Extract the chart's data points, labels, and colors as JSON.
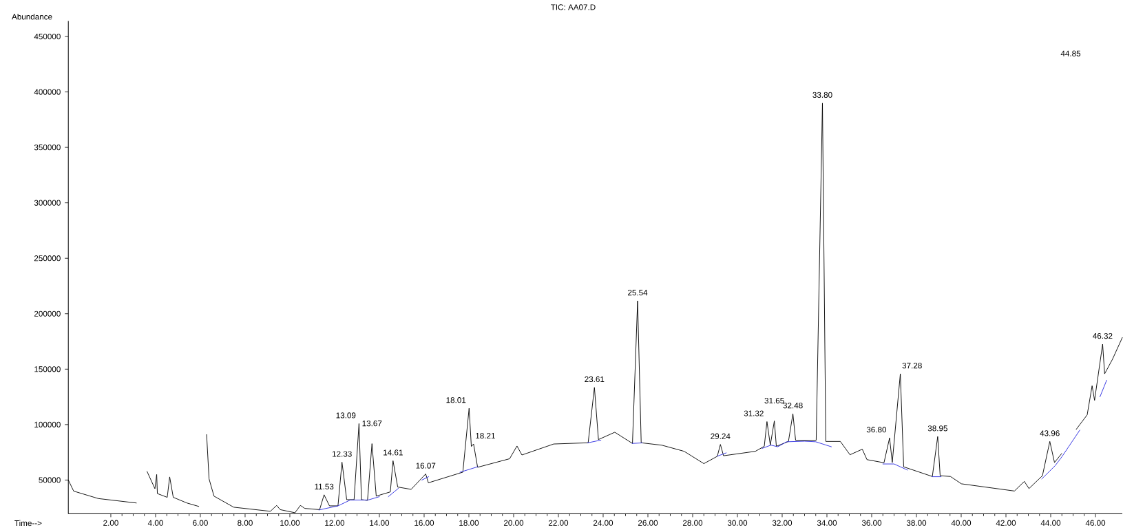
{
  "chart_data": {
    "type": "line",
    "title": "TIC: AA07.D",
    "xlabel": "Time-->",
    "ylabel": "Abundance",
    "xlim": [
      0.1,
      47.2
    ],
    "ylim": [
      19600,
      464000
    ],
    "xticks": [
      {
        "value": 2,
        "label": "2.00"
      },
      {
        "value": 4,
        "label": "4.00"
      },
      {
        "value": 6,
        "label": "6.00"
      },
      {
        "value": 8,
        "label": "8.00"
      },
      {
        "value": 10,
        "label": "10.00"
      },
      {
        "value": 12,
        "label": "12.00"
      },
      {
        "value": 14,
        "label": "14.00"
      },
      {
        "value": 16,
        "label": "16.00"
      },
      {
        "value": 18,
        "label": "18.00"
      },
      {
        "value": 20,
        "label": "20.00"
      },
      {
        "value": 22,
        "label": "22.00"
      },
      {
        "value": 24,
        "label": "24.00"
      },
      {
        "value": 26,
        "label": "26.00"
      },
      {
        "value": 28,
        "label": "28.00"
      },
      {
        "value": 30,
        "label": "30.00"
      },
      {
        "value": 32,
        "label": "32.00"
      },
      {
        "value": 34,
        "label": "34.00"
      },
      {
        "value": 36,
        "label": "36.00"
      },
      {
        "value": 38,
        "label": "38.00"
      },
      {
        "value": 40,
        "label": "40.00"
      },
      {
        "value": 42,
        "label": "42.00"
      },
      {
        "value": 44,
        "label": "44.00"
      },
      {
        "value": 46,
        "label": "46.00"
      }
    ],
    "yticks": [
      50000,
      100000,
      150000,
      200000,
      250000,
      300000,
      350000,
      400000,
      450000
    ],
    "series": [
      {
        "color": "#000000",
        "x": [
          0.1,
          0.34,
          1.44,
          3.14,
          3.17,
          3.38,
          3.59,
          3.62,
          3.97,
          4.05,
          4.08,
          4.52,
          4.63,
          4.79,
          5.4,
          5.93,
          5.95,
          6.09,
          6.23,
          6.28,
          6.39,
          6.61,
          7.49,
          9.13,
          9.41,
          9.57,
          10.23,
          10.47,
          10.67,
          11.33,
          11.53,
          11.77,
          12.15,
          12.33,
          12.54,
          12.87,
          13.09,
          13.2,
          13.47,
          13.67,
          13.86,
          14.49,
          14.61,
          14.82,
          15.42,
          16.07,
          16.19,
          17.73,
          18.01,
          18.11,
          18.21,
          18.39,
          19.82,
          20.15,
          20.37,
          21.79,
          23.33,
          23.61,
          23.79,
          24.52,
          25.31,
          25.54,
          25.7,
          26.63,
          27.62,
          28.5,
          29.1,
          29.24,
          29.38,
          30.8,
          31.2,
          31.32,
          31.47,
          31.65,
          31.74,
          32.28,
          32.48,
          32.6,
          33.52,
          33.8,
          33.95,
          34.6,
          35.03,
          35.58,
          35.79,
          36.55,
          36.8,
          36.92,
          37.28,
          37.43,
          38.71,
          38.95,
          39.06,
          39.52,
          40.01,
          42.38,
          42.82,
          43.03,
          43.63,
          43.96,
          44.17,
          44.49,
          44.6,
          44.78,
          44.97,
          45.14,
          45.63,
          45.85,
          45.96,
          46.32,
          46.41,
          46.76,
          47.2
        ],
        "values": [
          50000,
          40000,
          33300,
          29300,
          null,
          null,
          null,
          57700,
          42200,
          55000,
          37800,
          34400,
          52800,
          34400,
          29300,
          26200,
          null,
          null,
          null,
          91000,
          51000,
          35500,
          25500,
          21800,
          27100,
          23300,
          20500,
          27100,
          24400,
          23300,
          36700,
          26700,
          26700,
          66100,
          32300,
          32300,
          100900,
          32300,
          31600,
          82800,
          35500,
          39300,
          67400,
          43700,
          41600,
          55500,
          47500,
          57100,
          114700,
          80300,
          82500,
          61500,
          69200,
          80700,
          72600,
          82500,
          83600,
          133500,
          86500,
          93100,
          83000,
          211600,
          83600,
          81400,
          75900,
          64800,
          71400,
          82100,
          71900,
          75900,
          80400,
          102700,
          81500,
          103300,
          80400,
          84800,
          109800,
          85900,
          85900,
          389900,
          84800,
          84800,
          72800,
          77800,
          68400,
          65600,
          88000,
          65800,
          145800,
          61900,
          53200,
          89200,
          53900,
          53200,
          46600,
          40100,
          48800,
          42300,
          53900,
          84800,
          65800,
          73900,
          null,
          null,
          null,
          95700,
          108800,
          135000,
          121900,
          172500,
          145800,
          158900,
          178500
        ]
      },
      {
        "color": "#2a2ae0",
        "x": [
          11.3,
          12.15,
          12.7,
          13.5,
          14.0,
          14.2,
          14.4,
          14.85,
          15.4,
          15.9,
          16.2,
          17.0,
          17.6,
          18.4,
          20.0,
          23.3,
          23.9,
          24.5,
          25.3,
          25.75,
          27.0,
          29.1,
          29.5,
          30.5,
          31.1,
          31.5,
          31.8,
          32.2,
          33.0,
          33.5,
          34.2,
          35.5,
          36.5,
          37.0,
          37.6,
          38.2,
          38.7,
          39.1,
          41.0,
          43.6,
          44.2,
          44.5,
          45.3,
          45.8,
          46.2,
          46.5
        ],
        "values": [
          23000,
          26700,
          32000,
          32000,
          35000,
          null,
          35000,
          42500,
          null,
          50000,
          53000,
          null,
          57000,
          62000,
          null,
          83500,
          86000,
          null,
          83000,
          83500,
          null,
          71500,
          74500,
          null,
          78500,
          81500,
          80000,
          84500,
          85000,
          84500,
          80000,
          null,
          64500,
          64500,
          59000,
          null,
          53000,
          53000,
          null,
          51000,
          63000,
          71000,
          95000,
          null,
          125000,
          140000
        ]
      }
    ],
    "annotations": [
      {
        "text": "11.53",
        "x": 11.53,
        "y": 36700
      },
      {
        "text": "12.33",
        "x": 12.33,
        "y": 66100
      },
      {
        "text": "13.09",
        "x": 13.09,
        "y": 100900
      },
      {
        "text": "13.67",
        "x": 13.67,
        "y": 82800
      },
      {
        "text": "14.61",
        "x": 14.61,
        "y": 67400
      },
      {
        "text": "16.07",
        "x": 16.07,
        "y": 55500
      },
      {
        "text": "18.01",
        "x": 18.01,
        "y": 114700
      },
      {
        "text": "18.21",
        "x": 18.21,
        "y": 82500
      },
      {
        "text": "23.61",
        "x": 23.61,
        "y": 133500
      },
      {
        "text": "25.54",
        "x": 25.54,
        "y": 211600
      },
      {
        "text": "29.24",
        "x": 29.24,
        "y": 82100
      },
      {
        "text": "31.32",
        "x": 31.32,
        "y": 102700
      },
      {
        "text": "31.65",
        "x": 31.65,
        "y": 103300
      },
      {
        "text": "32.48",
        "x": 32.48,
        "y": 109800
      },
      {
        "text": "33.80",
        "x": 33.8,
        "y": 389900
      },
      {
        "text": "36.80",
        "x": 36.8,
        "y": 88000
      },
      {
        "text": "37.28",
        "x": 37.28,
        "y": 145800
      },
      {
        "text": "38.95",
        "x": 38.95,
        "y": 89200
      },
      {
        "text": "43.96",
        "x": 43.96,
        "y": 84800
      },
      "44.85",
      {
        "text": "46.32",
        "x": 46.32,
        "y": 172500
      }
    ]
  }
}
